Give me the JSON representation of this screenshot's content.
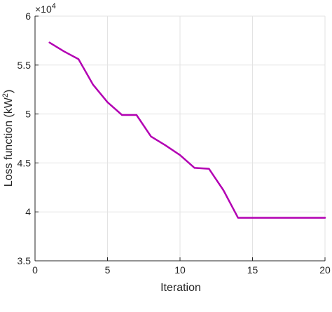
{
  "chart_data": {
    "type": "line",
    "xlabel": "Iteration",
    "ylabel_main": "Loss function (kW",
    "ylabel_sup": "2",
    "ylabel_end": ")",
    "exponent_base": "×10",
    "exponent_power": "4",
    "xlim": [
      0,
      20
    ],
    "ylim": [
      3.5,
      6
    ],
    "x_ticks": [
      0,
      5,
      10,
      15,
      20
    ],
    "y_ticks": [
      3.5,
      4,
      4.5,
      5,
      5.5,
      6
    ],
    "x_tick_labels": [
      "0",
      "5",
      "10",
      "15",
      "20"
    ],
    "y_tick_labels": [
      "3.5",
      "4",
      "4.5",
      "5",
      "5.5",
      "6"
    ],
    "grid": true,
    "series": [
      {
        "color": "#b300b3",
        "x": [
          1,
          2,
          3,
          4,
          5,
          6,
          7,
          8,
          9,
          10,
          11,
          12,
          13,
          14,
          15,
          16,
          17,
          18,
          19,
          20
        ],
        "y": [
          5.73,
          5.64,
          5.56,
          5.3,
          5.12,
          4.99,
          4.99,
          4.77,
          4.68,
          4.58,
          4.45,
          4.44,
          4.22,
          3.94,
          3.94,
          3.94,
          3.94,
          3.94,
          3.94,
          3.94
        ]
      }
    ]
  }
}
